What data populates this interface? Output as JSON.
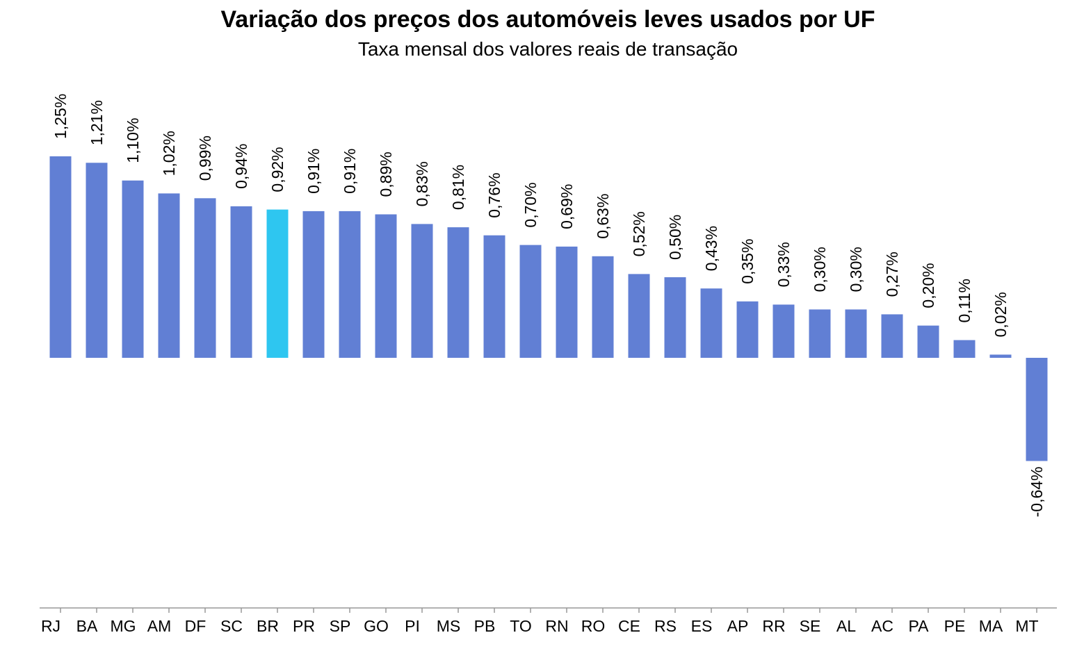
{
  "chart_data": {
    "type": "bar",
    "title": "Variação dos preços dos automóveis leves usados por UF",
    "subtitle": "Taxa mensal dos valores reais de transação",
    "categories": [
      "RJ",
      "BA",
      "MG",
      "AM",
      "DF",
      "SC",
      "BR",
      "PR",
      "SP",
      "GO",
      "PI",
      "MS",
      "PB",
      "TO",
      "RN",
      "RO",
      "CE",
      "RS",
      "ES",
      "AP",
      "RR",
      "SE",
      "AL",
      "AC",
      "PA",
      "PE",
      "MA",
      "MT"
    ],
    "values": [
      1.25,
      1.21,
      1.1,
      1.02,
      0.99,
      0.94,
      0.92,
      0.91,
      0.91,
      0.89,
      0.83,
      0.81,
      0.76,
      0.7,
      0.69,
      0.63,
      0.52,
      0.5,
      0.43,
      0.35,
      0.33,
      0.3,
      0.3,
      0.27,
      0.2,
      0.11,
      0.02,
      -0.64
    ],
    "labels": [
      "1,25%",
      "1,21%",
      "1,10%",
      "1,02%",
      "0,99%",
      "0,94%",
      "0,92%",
      "0,91%",
      "0,91%",
      "0,89%",
      "0,83%",
      "0,81%",
      "0,76%",
      "0,70%",
      "0,69%",
      "0,63%",
      "0,52%",
      "0,50%",
      "0,43%",
      "0,35%",
      "0,33%",
      "0,30%",
      "0,30%",
      "0,27%",
      "0,20%",
      "0,11%",
      "0,02%",
      "-0,64%"
    ],
    "highlight_category": "BR",
    "colors": {
      "bar": "#617fd4",
      "highlight": "#2ec6f0",
      "axis": "#999999",
      "text": "#000000"
    },
    "ylim": [
      -1.55,
      1.25
    ],
    "grid": false,
    "legend": "none"
  }
}
